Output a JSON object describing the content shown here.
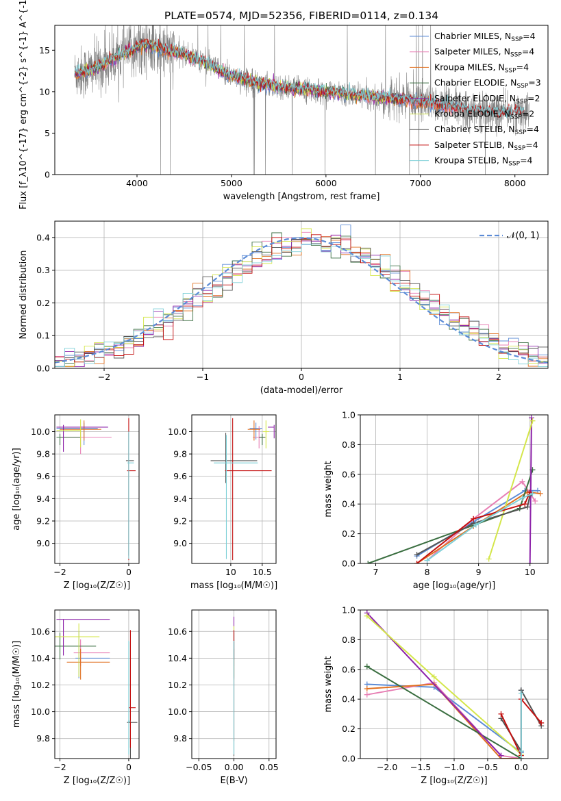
{
  "title": "PLATE=0574, MJD=52356, FIBERID=0114, z=0.134",
  "colors": {
    "Chabrier MILES": "#5b8bd6",
    "Salpeter MILES": "#e77fb4",
    "Kroupa MILES": "#e07020",
    "Chabrier ELODIE": "#3a6e40",
    "Salpeter ELODIE": "#8e24aa",
    "Kroupa ELODIE": "#d4e64a",
    "Chabrier STELIB": "#555555",
    "Salpeter STELIB": "#c41010",
    "Kroupa STELIB": "#7fd0d8",
    "data": "#808080",
    "gaussian": "#5b8bd6"
  },
  "legend_entries": [
    "Chabrier MILES, N_{SSP}=4",
    "Salpeter MILES, N_{SSP}=4",
    "Kroupa MILES, N_{SSP}=4",
    "Chabrier ELODIE, N_{SSP}=3",
    "Salpeter ELODIE, N_{SSP}=2",
    "Kroupa ELODIE, N_{SSP}=2",
    "Chabrier STELIB, N_{SSP}=4",
    "Salpeter STELIB, N_{SSP}=4",
    "Kroupa STELIB, N_{SSP}=4"
  ],
  "chart_data": [
    {
      "type": "line",
      "id": "spectrum",
      "xlabel": "wavelength [Angstrom, rest frame]",
      "ylabel": "Flux [f_λ10^{-17} erg cm^{-2} s^{-1} A^{-1}]",
      "xlim": [
        3130,
        8350
      ],
      "ylim": [
        0,
        18
      ],
      "xticks": [
        4000,
        5000,
        6000,
        7000,
        8000
      ],
      "yticks": [
        0,
        5,
        10,
        15
      ],
      "grid": false,
      "legend": "top-right",
      "continuum_model": {
        "x": [
          3340,
          3450,
          3550,
          3650,
          3750,
          3850,
          3950,
          4050,
          4150,
          4300,
          4500,
          4700,
          4900,
          5100,
          5300,
          5500,
          5700,
          5900,
          6100,
          6300,
          6500,
          6700,
          6900,
          7100,
          7300,
          7500,
          7700,
          7900,
          8100
        ],
        "y": [
          12.2,
          12.4,
          12.8,
          13.3,
          14.0,
          14.5,
          15.0,
          15.6,
          15.6,
          15.0,
          14.5,
          13.6,
          12.4,
          11.6,
          11.0,
          10.6,
          10.4,
          10.1,
          9.9,
          9.6,
          9.4,
          9.2,
          9.0,
          8.6,
          8.2,
          7.8,
          7.6,
          7.4,
          7.6
        ]
      },
      "spectrum_range": [
        3340,
        8150
      ]
    },
    {
      "type": "histogram",
      "id": "residuals",
      "xlabel": "(data-model)/error",
      "ylabel": "Normed distribution",
      "xlim": [
        -2.5,
        2.5
      ],
      "ylim": [
        0,
        0.45
      ],
      "xticks": [
        -2,
        -1,
        0,
        1,
        2
      ],
      "yticks": [
        0.0,
        0.1,
        0.2,
        0.3,
        0.4
      ],
      "grid": true,
      "legend": "top-right",
      "legend_label": "𝒩(0, 1)",
      "bins": 50,
      "gaussian": {
        "mu": 0,
        "sigma": 1
      }
    },
    {
      "type": "errorbar",
      "id": "age_vs_Z",
      "xlabel": "Z [log₁₀(Z/Z☉)]",
      "ylabel": "age  [log₁₀(age/yr)]",
      "xlim": [
        -2.15,
        0.3
      ],
      "ylim": [
        8.82,
        10.15
      ],
      "xticks": [
        -2,
        0
      ],
      "yticks": [
        9.0,
        9.2,
        9.4,
        9.6,
        9.8,
        10.0
      ],
      "grid": true,
      "points": [
        {
          "series": "Chabrier MILES",
          "x": -1.3,
          "xerr": [
            0.8,
            0.4
          ],
          "y": 10.03,
          "yerr": [
            0.15,
            0.05
          ]
        },
        {
          "series": "Salpeter MILES",
          "x": -1.4,
          "xerr": [
            0.6,
            0.9
          ],
          "y": 9.95,
          "yerr": [
            0.15,
            0.1
          ]
        },
        {
          "series": "Kroupa MILES",
          "x": -1.3,
          "xerr": [
            0.7,
            0.5
          ],
          "y": 10.02,
          "yerr": [
            0.1,
            0.08
          ]
        },
        {
          "series": "Chabrier ELODIE",
          "x": -2.0,
          "xerr": [
            0.1,
            0.6
          ],
          "y": 9.95,
          "yerr": [
            0.07,
            0.03
          ]
        },
        {
          "series": "Salpeter ELODIE",
          "x": -1.9,
          "xerr": [
            0.2,
            1.3
          ],
          "y": 10.04,
          "yerr": [
            0.22,
            0.02
          ]
        },
        {
          "series": "Kroupa ELODIE",
          "x": -1.4,
          "xerr": [
            0.7,
            0.0
          ],
          "y": 10.01,
          "yerr": [
            0.15,
            0.1
          ]
        },
        {
          "series": "Chabrier STELIB",
          "x": 0.0,
          "xerr": [
            0.08,
            0.15
          ],
          "y": 9.74,
          "yerr": [
            0.85,
            0.25
          ]
        },
        {
          "series": "Salpeter STELIB",
          "x": 0.0,
          "xerr": [
            0.05,
            0.2
          ],
          "y": 9.65,
          "yerr": [
            0.8,
            0.47
          ]
        },
        {
          "series": "Kroupa STELIB",
          "x": 0.0,
          "xerr": [
            0.04,
            0.15
          ],
          "y": 9.72,
          "yerr": [
            0.86,
            0.28
          ]
        }
      ]
    },
    {
      "type": "errorbar",
      "id": "age_vs_mass",
      "xlabel": "mass [log₁₀(M/M☉)]",
      "ylabel": "",
      "xlim": [
        9.38,
        10.72
      ],
      "ylim": [
        8.82,
        10.15
      ],
      "xticks": [
        10.0,
        10.5
      ],
      "yticks": [
        9.0,
        9.2,
        9.4,
        9.6,
        9.8,
        10.0
      ],
      "grid": true,
      "points": [
        {
          "series": "Chabrier MILES",
          "x": 10.4,
          "xerr": [
            0.1,
            0.1
          ],
          "y": 10.03,
          "yerr": [
            0.1,
            0.05
          ]
        },
        {
          "series": "Salpeter MILES",
          "x": 10.45,
          "xerr": [
            0.1,
            0.1
          ],
          "y": 9.95,
          "yerr": [
            0.1,
            0.1
          ]
        },
        {
          "series": "Kroupa MILES",
          "x": 10.37,
          "xerr": [
            0.1,
            0.1
          ],
          "y": 10.02,
          "yerr": [
            0.1,
            0.08
          ]
        },
        {
          "series": "Chabrier ELODIE",
          "x": 10.5,
          "xerr": [
            0.05,
            0.05
          ],
          "y": 9.95,
          "yerr": [
            0.07,
            0.03
          ]
        },
        {
          "series": "Salpeter ELODIE",
          "x": 10.69,
          "xerr": [
            0.1,
            0.0
          ],
          "y": 10.04,
          "yerr": [
            0.1,
            0.02
          ]
        },
        {
          "series": "Kroupa ELODIE",
          "x": 10.56,
          "xerr": [
            0.05,
            0.05
          ],
          "y": 10.0,
          "yerr": [
            0.15,
            0.1
          ]
        },
        {
          "series": "Chabrier STELIB",
          "x": 9.92,
          "xerr": [
            0.24,
            0.5
          ],
          "y": 9.74,
          "yerr": [
            0.2,
            0.25
          ]
        },
        {
          "series": "Salpeter STELIB",
          "x": 10.03,
          "xerr": [
            0.12,
            0.62
          ],
          "y": 9.65,
          "yerr": [
            0.8,
            0.47
          ]
        },
        {
          "series": "Kroupa STELIB",
          "x": 9.93,
          "xerr": [
            0.2,
            0.5
          ],
          "y": 9.72,
          "yerr": [
            0.86,
            0.25
          ]
        }
      ]
    },
    {
      "type": "line",
      "id": "weight_vs_age",
      "xlabel": "age  [log₁₀(age/yr)]",
      "ylabel": "mass weight",
      "xlim": [
        6.7,
        10.35
      ],
      "ylim": [
        0,
        1.0
      ],
      "xticks": [
        7,
        8,
        9,
        10
      ],
      "yticks": [
        0.0,
        0.2,
        0.4,
        0.6,
        0.8,
        1.0
      ],
      "grid": true,
      "series": [
        {
          "name": "Chabrier MILES",
          "x": [
            7.8,
            8.9,
            9.9,
            10.15
          ],
          "y": [
            0.05,
            0.28,
            0.49,
            0.49
          ]
        },
        {
          "name": "Salpeter MILES",
          "x": [
            8.0,
            8.9,
            9.85,
            10.1
          ],
          "y": [
            0.02,
            0.3,
            0.55,
            0.42
          ]
        },
        {
          "name": "Kroupa MILES",
          "x": [
            7.8,
            8.9,
            9.95,
            10.2
          ],
          "y": [
            0.0,
            0.25,
            0.48,
            0.47
          ]
        },
        {
          "name": "Chabrier ELODIE",
          "x": [
            6.85,
            9.8,
            10.05
          ],
          "y": [
            0.0,
            0.37,
            0.63
          ]
        },
        {
          "name": "Salpeter ELODIE",
          "x": [
            10.0,
            10.03
          ],
          "y": [
            0.0,
            0.98
          ]
        },
        {
          "name": "Kroupa ELODIE",
          "x": [
            9.2,
            10.05
          ],
          "y": [
            0.03,
            0.96
          ]
        },
        {
          "name": "Chabrier STELIB",
          "x": [
            7.8,
            8.9,
            9.95,
            10.0
          ],
          "y": [
            0.06,
            0.27,
            0.38,
            0.46
          ]
        },
        {
          "name": "Salpeter STELIB",
          "x": [
            7.8,
            8.9,
            9.9,
            10.0
          ],
          "y": [
            0.0,
            0.3,
            0.4,
            0.48
          ]
        },
        {
          "name": "Kroupa STELIB",
          "x": [
            8.0,
            8.95,
            9.85,
            10.05
          ],
          "y": [
            0.02,
            0.26,
            0.44,
            0.47
          ]
        }
      ]
    },
    {
      "type": "errorbar",
      "id": "mass_vs_Z",
      "xlabel": "Z [log₁₀(Z/Z☉)]",
      "ylabel": "mass [log₁₀(M/M☉)]",
      "xlim": [
        -2.15,
        0.3
      ],
      "ylim": [
        9.65,
        10.76
      ],
      "xticks": [
        -2,
        0
      ],
      "yticks": [
        9.8,
        10.0,
        10.2,
        10.4,
        10.6
      ],
      "grid": true,
      "points": [
        {
          "series": "Chabrier MILES",
          "x": -1.45,
          "xerr": [
            0.1,
            0.9
          ],
          "y": 10.4,
          "yerr": [
            0.15,
            0.2
          ]
        },
        {
          "series": "Salpeter MILES",
          "x": -1.4,
          "xerr": [
            0.2,
            0.85
          ],
          "y": 10.44,
          "yerr": [
            0.1,
            0.1
          ]
        },
        {
          "series": "Kroupa MILES",
          "x": -1.4,
          "xerr": [
            0.4,
            0.85
          ],
          "y": 10.37,
          "yerr": [
            0.13,
            0.1
          ]
        },
        {
          "series": "Chabrier ELODIE",
          "x": -2.0,
          "xerr": [
            0.15,
            1.05
          ],
          "y": 10.49,
          "yerr": [
            0.1,
            0.1
          ]
        },
        {
          "series": "Salpeter ELODIE",
          "x": -1.9,
          "xerr": [
            0.2,
            1.35
          ],
          "y": 10.69,
          "yerr": [
            0.27,
            0.0
          ]
        },
        {
          "series": "Kroupa ELODIE",
          "x": -1.45,
          "xerr": [
            0.75,
            0.6
          ],
          "y": 10.56,
          "yerr": [
            0.3,
            0.1
          ]
        },
        {
          "series": "Chabrier STELIB",
          "x": 0.05,
          "xerr": [
            0.1,
            0.2
          ],
          "y": 9.92,
          "yerr": [
            0.3,
            0.6
          ]
        },
        {
          "series": "Salpeter STELIB",
          "x": 0.05,
          "xerr": [
            0.05,
            0.15
          ],
          "y": 10.03,
          "yerr": [
            0.3,
            0.58
          ]
        },
        {
          "series": "Kroupa STELIB",
          "x": 0.0,
          "xerr": [
            0.02,
            0.05
          ],
          "y": 9.93,
          "yerr": [
            0.25,
            0.6
          ]
        }
      ]
    },
    {
      "type": "errorbar",
      "id": "mass_vs_EBV",
      "xlabel": "E(B-V)",
      "ylabel": "",
      "xlim": [
        -0.06,
        0.06
      ],
      "ylim": [
        9.65,
        10.76
      ],
      "xticks": [
        -0.05,
        0.0,
        0.05
      ],
      "yticks": [
        9.8,
        10.0,
        10.2,
        10.4,
        10.6
      ],
      "grid": true,
      "points": [
        {
          "series": "Chabrier MILES",
          "x": 0.0,
          "xerr": [
            0,
            0
          ],
          "y": 10.4,
          "yerr": [
            0.15,
            0.2
          ]
        },
        {
          "series": "Salpeter MILES",
          "x": 0.0,
          "xerr": [
            0,
            0
          ],
          "y": 10.44,
          "yerr": [
            0.1,
            0.1
          ]
        },
        {
          "series": "Kroupa MILES",
          "x": 0.0,
          "xerr": [
            0,
            0
          ],
          "y": 10.37,
          "yerr": [
            0.13,
            0.1
          ]
        },
        {
          "series": "Chabrier ELODIE",
          "x": 0.0,
          "xerr": [
            0,
            0
          ],
          "y": 10.49,
          "yerr": [
            0.1,
            0.1
          ]
        },
        {
          "series": "Salpeter ELODIE",
          "x": 0.0,
          "xerr": [
            0,
            0
          ],
          "y": 10.69,
          "yerr": [
            0.3,
            0.02
          ]
        },
        {
          "series": "Kroupa ELODIE",
          "x": 0.0,
          "xerr": [
            0,
            0
          ],
          "y": 10.56,
          "yerr": [
            0.3,
            0.08
          ]
        },
        {
          "series": "Chabrier STELIB",
          "x": 0.0,
          "xerr": [
            0,
            0
          ],
          "y": 9.92,
          "yerr": [
            0.25,
            0.6
          ]
        },
        {
          "series": "Salpeter STELIB",
          "x": 0.0,
          "xerr": [
            0,
            0
          ],
          "y": 10.03,
          "yerr": [
            0.25,
            0.58
          ]
        },
        {
          "series": "Kroupa STELIB",
          "x": 0.0,
          "xerr": [
            0,
            0
          ],
          "y": 9.93,
          "yerr": [
            0.25,
            0.6
          ]
        }
      ]
    },
    {
      "type": "line",
      "id": "weight_vs_Z",
      "xlabel": "Z [log₁₀(Z/Z☉)]",
      "ylabel": "mass weight",
      "xlim": [
        -2.4,
        0.4
      ],
      "ylim": [
        0,
        1.0
      ],
      "xticks": [
        -2.0,
        -1.5,
        -1.0,
        -0.5,
        0.0
      ],
      "yticks": [
        0.0,
        0.2,
        0.4,
        0.6,
        0.8,
        1.0
      ],
      "grid": true,
      "series": [
        {
          "name": "Chabrier MILES",
          "x": [
            -2.3,
            -1.3,
            0.0,
            0.0
          ],
          "y": [
            0.5,
            0.48,
            0.04,
            0.46
          ]
        },
        {
          "name": "Salpeter MILES",
          "x": [
            -2.3,
            -1.3,
            -0.3,
            0.0
          ],
          "y": [
            0.43,
            0.51,
            0.02,
            0.0
          ]
        },
        {
          "name": "Kroupa MILES",
          "x": [
            -2.3,
            -1.3,
            -0.3,
            0.0
          ],
          "y": [
            0.47,
            0.5,
            0.0,
            0.0
          ]
        },
        {
          "name": "Chabrier ELODIE",
          "x": [
            -2.3,
            0.0
          ],
          "y": [
            0.62,
            0.0
          ]
        },
        {
          "name": "Salpeter ELODIE",
          "x": [
            -2.3,
            -0.3
          ],
          "y": [
            0.98,
            0.02
          ]
        },
        {
          "name": "Kroupa ELODIE",
          "x": [
            -2.3,
            -1.3,
            0.0
          ],
          "y": [
            0.96,
            0.55,
            0.03
          ]
        },
        {
          "name": "Chabrier STELIB",
          "x": [
            -0.3,
            0.0,
            0.0,
            0.3
          ],
          "y": [
            0.27,
            0.05,
            0.46,
            0.22
          ]
        },
        {
          "name": "Salpeter STELIB",
          "x": [
            -0.3,
            0.0,
            0.0,
            0.3
          ],
          "y": [
            0.3,
            0.02,
            0.4,
            0.24
          ]
        },
        {
          "name": "Kroupa STELIB",
          "x": [
            0.0,
            0.0,
            0.0
          ],
          "y": [
            0.0,
            0.44,
            0.05
          ]
        }
      ]
    }
  ]
}
